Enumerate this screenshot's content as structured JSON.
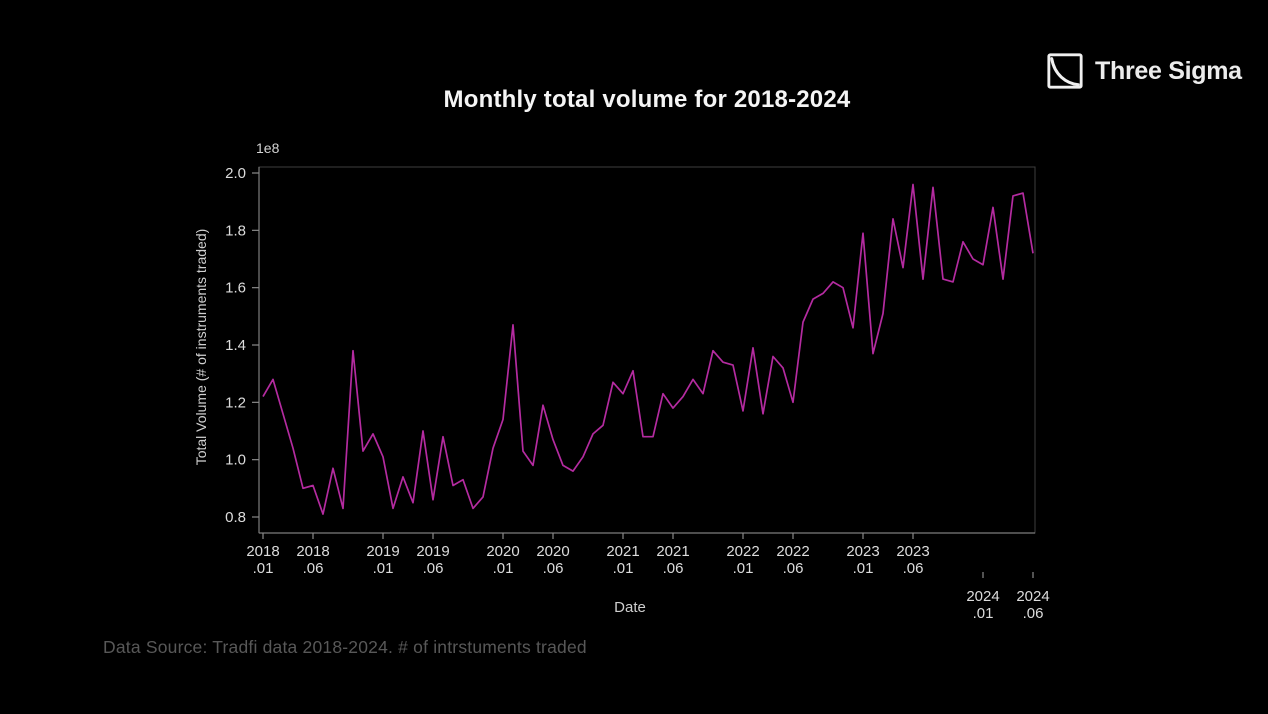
{
  "logo": {
    "brand": "Three Sigma"
  },
  "footer": {
    "data_source": "Data Source: Tradfi data 2018-2024. # of intrstuments traded"
  },
  "chart_data": {
    "type": "line",
    "title": "Monthly total volume for 2018-2024",
    "xlabel": "Date",
    "ylabel": "Total Volume (# of instruments traded)",
    "y_scale_note": "1e8",
    "y_unit": "x1e8 instruments traded",
    "line_color": "#b42ba0",
    "background": "#000000",
    "grid": false,
    "legend": "none",
    "ylim": [
      0.8,
      2.0
    ],
    "yticks": [
      "0.8",
      "1.0",
      "1.2",
      "1.4",
      "1.6",
      "1.8",
      "2.0"
    ],
    "xticks": [
      {
        "top": "2018",
        "bottom": ".01",
        "m": 0,
        "offset": false
      },
      {
        "top": "2018",
        "bottom": ".06",
        "m": 5,
        "offset": false
      },
      {
        "top": "2019",
        "bottom": ".01",
        "m": 12,
        "offset": false
      },
      {
        "top": "2019",
        "bottom": ".06",
        "m": 17,
        "offset": false
      },
      {
        "top": "2020",
        "bottom": ".01",
        "m": 24,
        "offset": false
      },
      {
        "top": "2020",
        "bottom": ".06",
        "m": 29,
        "offset": false
      },
      {
        "top": "2021",
        "bottom": ".01",
        "m": 36,
        "offset": false
      },
      {
        "top": "2021",
        "bottom": ".06",
        "m": 41,
        "offset": false
      },
      {
        "top": "2022",
        "bottom": ".01",
        "m": 48,
        "offset": false
      },
      {
        "top": "2022",
        "bottom": ".06",
        "m": 53,
        "offset": false
      },
      {
        "top": "2023",
        "bottom": ".01",
        "m": 60,
        "offset": false
      },
      {
        "top": "2023",
        "bottom": ".06",
        "m": 65,
        "offset": false
      },
      {
        "top": "2024",
        "bottom": ".01",
        "m": 72,
        "offset": true
      },
      {
        "top": "2024",
        "bottom": ".06",
        "m": 77,
        "offset": true
      }
    ],
    "x": [
      "2018-01",
      "2018-02",
      "2018-03",
      "2018-04",
      "2018-05",
      "2018-06",
      "2018-07",
      "2018-08",
      "2018-09",
      "2018-10",
      "2018-11",
      "2018-12",
      "2019-01",
      "2019-02",
      "2019-03",
      "2019-04",
      "2019-05",
      "2019-06",
      "2019-07",
      "2019-08",
      "2019-09",
      "2019-10",
      "2019-11",
      "2019-12",
      "2020-01",
      "2020-02",
      "2020-03",
      "2020-04",
      "2020-05",
      "2020-06",
      "2020-07",
      "2020-08",
      "2020-09",
      "2020-10",
      "2020-11",
      "2020-12",
      "2021-01",
      "2021-02",
      "2021-03",
      "2021-04",
      "2021-05",
      "2021-06",
      "2021-07",
      "2021-08",
      "2021-09",
      "2021-10",
      "2021-11",
      "2021-12",
      "2022-01",
      "2022-02",
      "2022-03",
      "2022-04",
      "2022-05",
      "2022-06",
      "2022-07",
      "2022-08",
      "2022-09",
      "2022-10",
      "2022-11",
      "2022-12",
      "2023-01",
      "2023-02",
      "2023-03",
      "2023-04",
      "2023-05",
      "2023-06",
      "2023-07",
      "2023-08",
      "2023-09",
      "2023-10",
      "2023-11",
      "2023-12",
      "2024-01",
      "2024-02",
      "2024-03",
      "2024-04",
      "2024-05",
      "2024-06"
    ],
    "series": [
      {
        "name": "Monthly total volume",
        "values": [
          1.22,
          1.28,
          1.16,
          1.04,
          0.9,
          0.91,
          0.81,
          0.97,
          0.83,
          1.38,
          1.03,
          1.09,
          1.01,
          0.83,
          0.94,
          0.85,
          1.1,
          0.86,
          1.08,
          0.91,
          0.93,
          0.83,
          0.87,
          1.04,
          1.14,
          1.47,
          1.03,
          0.98,
          1.19,
          1.07,
          0.98,
          0.96,
          1.01,
          1.09,
          1.12,
          1.27,
          1.23,
          1.31,
          1.08,
          1.08,
          1.23,
          1.18,
          1.22,
          1.28,
          1.23,
          1.38,
          1.34,
          1.33,
          1.17,
          1.39,
          1.16,
          1.36,
          1.32,
          1.2,
          1.48,
          1.56,
          1.58,
          1.62,
          1.6,
          1.46,
          1.79,
          1.37,
          1.51,
          1.84,
          1.67,
          1.96,
          1.63,
          1.95,
          1.63,
          1.62,
          1.76,
          1.7,
          1.68,
          1.88,
          1.63,
          1.92,
          1.93,
          1.72
        ]
      }
    ]
  }
}
